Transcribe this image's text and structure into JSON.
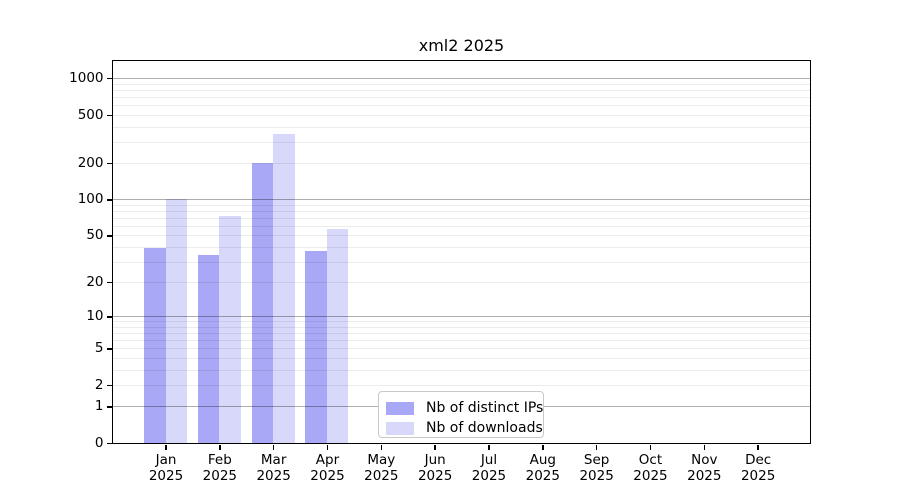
{
  "chart": {
    "title": "xml2 2025"
  },
  "chart_data": {
    "type": "bar",
    "title": "xml2 2025",
    "categories": [
      "Jan 2025",
      "Feb 2025",
      "Mar 2025",
      "Apr 2025",
      "May 2025",
      "Jun 2025",
      "Jul 2025",
      "Aug 2025",
      "Sep 2025",
      "Oct 2025",
      "Nov 2025",
      "Dec 2025"
    ],
    "series": [
      {
        "name": "Nb of distinct IPs",
        "color": "#a8a8f6",
        "values": [
          39,
          34,
          200,
          37,
          null,
          null,
          null,
          null,
          null,
          null,
          null,
          null
        ]
      },
      {
        "name": "Nb of downloads",
        "color": "#d8d8fa",
        "values": [
          100,
          72,
          350,
          57,
          null,
          null,
          null,
          null,
          null,
          null,
          null,
          null
        ]
      }
    ],
    "xlabel": "",
    "ylabel": "",
    "y_scale": "log10(value+1)",
    "y_ticks": [
      0,
      1,
      2,
      5,
      10,
      20,
      50,
      100,
      200,
      500,
      1000
    ],
    "ylim": [
      0,
      1400
    ],
    "grid": "horizontal, log majors at 1/10/100/1000 with log-spaced minors",
    "legend_position": "lower center",
    "legend_border_color": "#c9c9c9",
    "axis_color": "#000000",
    "background_color": "#ffffff"
  }
}
